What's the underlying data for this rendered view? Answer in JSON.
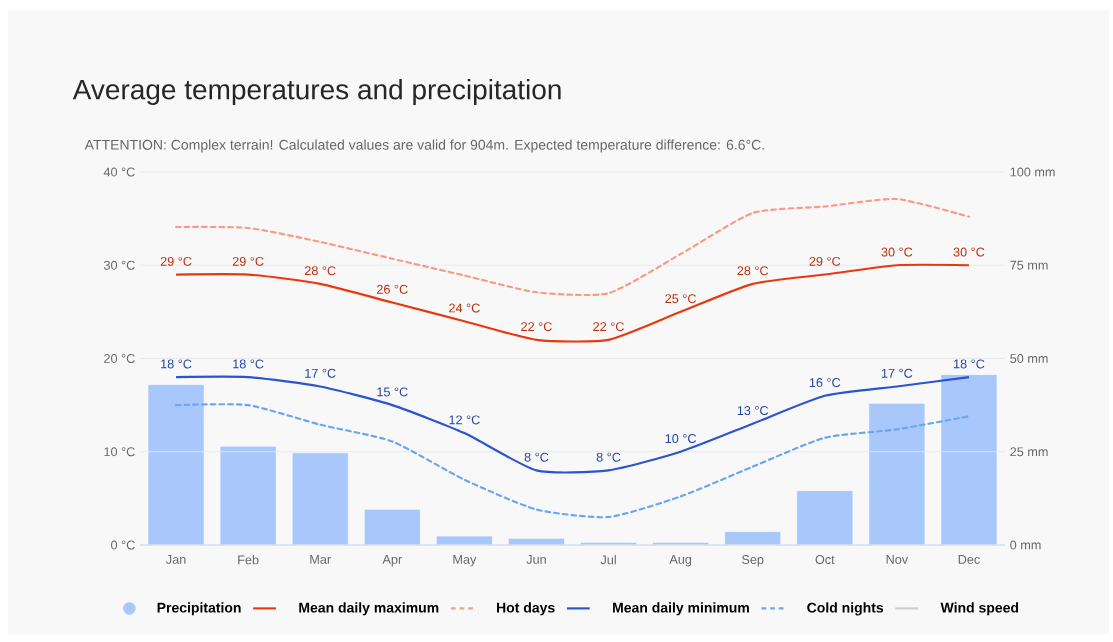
{
  "chart_data": {
    "type": "line",
    "title": "Average temperatures and precipitation",
    "subtitle": "ATTENTION: Complex terrain! Calculated values are valid for 904m. Expected temperature difference: 6.6°C.",
    "categories": [
      "Jan",
      "Feb",
      "Mar",
      "Apr",
      "May",
      "Jun",
      "Jul",
      "Aug",
      "Sep",
      "Oct",
      "Nov",
      "Dec"
    ],
    "series": [
      {
        "name": "Precipitation",
        "type": "bar",
        "axis": "y2",
        "color": "#a8c8fc",
        "values": [
          43,
          26.5,
          24.7,
          9.6,
          2.4,
          1.8,
          0.7,
          0.7,
          3.6,
          14.6,
          38,
          45.7
        ]
      },
      {
        "name": "Mean daily maximum",
        "color": "#e8380d",
        "line_style": "solid",
        "values": [
          29,
          29,
          28,
          26,
          24,
          22,
          22,
          25,
          28,
          29,
          30,
          30
        ],
        "value_labels": [
          "29 °C",
          "29 °C",
          "28 °C",
          "26 °C",
          "24 °C",
          "22 °C",
          "22 °C",
          "25 °C",
          "28 °C",
          "29 °C",
          "30 °C",
          "30 °C"
        ]
      },
      {
        "name": "Hot days",
        "color": "#fa9a84",
        "line_style": "dashed",
        "values": [
          34.1,
          34,
          32.5,
          30.7,
          28.9,
          27.1,
          27,
          31.2,
          35.6,
          36.3,
          37.1,
          35.2
        ]
      },
      {
        "name": "Mean daily minimum",
        "color": "#2a54d0",
        "line_style": "solid",
        "values": [
          18,
          18,
          17,
          15,
          12,
          8,
          8,
          10,
          13,
          16,
          17,
          18
        ],
        "value_labels": [
          "18 °C",
          "18 °C",
          "17 °C",
          "15 °C",
          "12 °C",
          "8 °C",
          "8 °C",
          "10 °C",
          "13 °C",
          "16 °C",
          "17 °C",
          "18 °C"
        ]
      },
      {
        "name": "Cold nights",
        "color": "#6aa5f0",
        "line_style": "dashed",
        "values": [
          15,
          15,
          12.9,
          11.1,
          7,
          3.8,
          3,
          5.2,
          8.4,
          11.5,
          12.4,
          13.8
        ]
      },
      {
        "name": "Wind speed",
        "color": "#cccccc",
        "line_style": "solid",
        "values": [
          null,
          null,
          null,
          null,
          null,
          null,
          null,
          null,
          null,
          null,
          null,
          null
        ]
      }
    ],
    "ylim": [
      0,
      40
    ],
    "yticks": [
      {
        "value": 0,
        "label": "0 °C"
      },
      {
        "value": 10,
        "label": "10 °C"
      },
      {
        "value": 20,
        "label": "20 °C"
      },
      {
        "value": 30,
        "label": "30 °C"
      },
      {
        "value": 40,
        "label": "40 °C"
      }
    ],
    "y2lim": [
      0,
      100
    ],
    "y2ticks": [
      {
        "value": 0,
        "label": "0 mm"
      },
      {
        "value": 25,
        "label": "25 mm"
      },
      {
        "value": 50,
        "label": "50 mm"
      },
      {
        "value": 75,
        "label": "75 mm"
      },
      {
        "value": 100,
        "label": "100 mm"
      }
    ],
    "grid": "y",
    "legend": "bottom",
    "marker": "none"
  }
}
